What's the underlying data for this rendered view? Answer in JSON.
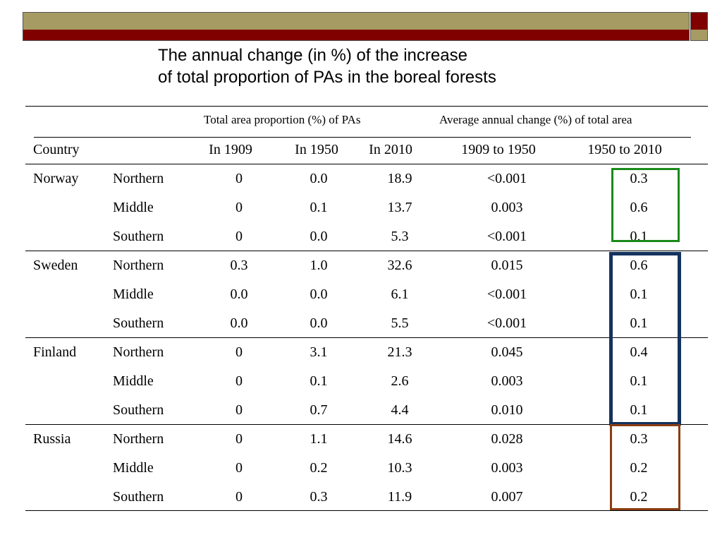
{
  "title": {
    "line1": "The annual change (in %) of the increase",
    "line2": "of total proportion of PAs in the boreal forests"
  },
  "table": {
    "group_headers": {
      "total_area": "Total area proportion (%) of PAs",
      "annual_change": "Average annual change (%) of total area"
    },
    "columns": [
      "Country",
      "In 1909",
      "In 1950",
      "In 2010",
      "1909 to 1950",
      "1950 to 2010"
    ],
    "groups": [
      {
        "country": "Norway",
        "rows": [
          {
            "region": "Northern",
            "in1909": "0",
            "in1950": "0.0",
            "in2010": "18.9",
            "c1909_1950": "<0.001",
            "c1950_2010": "0.3"
          },
          {
            "region": "Middle",
            "in1909": "0",
            "in1950": "0.1",
            "in2010": "13.7",
            "c1909_1950": "0.003",
            "c1950_2010": "0.6"
          },
          {
            "region": "Southern",
            "in1909": "0",
            "in1950": "0.0",
            "in2010": "5.3",
            "c1909_1950": "<0.001",
            "c1950_2010": "0.1"
          }
        ]
      },
      {
        "country": "Sweden",
        "rows": [
          {
            "region": "Northern",
            "in1909": "0.3",
            "in1950": "1.0",
            "in2010": "32.6",
            "c1909_1950": "0.015",
            "c1950_2010": "0.6"
          },
          {
            "region": "Middle",
            "in1909": "0.0",
            "in1950": "0.0",
            "in2010": "6.1",
            "c1909_1950": "<0.001",
            "c1950_2010": "0.1"
          },
          {
            "region": "Southern",
            "in1909": "0.0",
            "in1950": "0.0",
            "in2010": "5.5",
            "c1909_1950": "<0.001",
            "c1950_2010": "0.1"
          }
        ]
      },
      {
        "country": "Finland",
        "rows": [
          {
            "region": "Northern",
            "in1909": "0",
            "in1950": "3.1",
            "in2010": "21.3",
            "c1909_1950": "0.045",
            "c1950_2010": "0.4"
          },
          {
            "region": "Middle",
            "in1909": "0",
            "in1950": "0.1",
            "in2010": "2.6",
            "c1909_1950": "0.003",
            "c1950_2010": "0.1"
          },
          {
            "region": "Southern",
            "in1909": "0",
            "in1950": "0.7",
            "in2010": "4.4",
            "c1909_1950": "0.010",
            "c1950_2010": "0.1"
          }
        ]
      },
      {
        "country": "Russia",
        "rows": [
          {
            "region": "Northern",
            "in1909": "0",
            "in1950": "1.1",
            "in2010": "14.6",
            "c1909_1950": "0.028",
            "c1950_2010": "0.3"
          },
          {
            "region": "Middle",
            "in1909": "0",
            "in1950": "0.2",
            "in2010": "10.3",
            "c1909_1950": "0.003",
            "c1950_2010": "0.2"
          },
          {
            "region": "Southern",
            "in1909": "0",
            "in1950": "0.3",
            "in2010": "11.9",
            "c1909_1950": "0.007",
            "c1950_2010": "0.2"
          }
        ]
      }
    ]
  },
  "highlight_colors": {
    "norway": "#1a8a1a",
    "sweden_finland": "#13325e",
    "russia": "#8a3d12"
  },
  "theme_colors": {
    "olive": "#a59b63",
    "maroon": "#800000"
  }
}
